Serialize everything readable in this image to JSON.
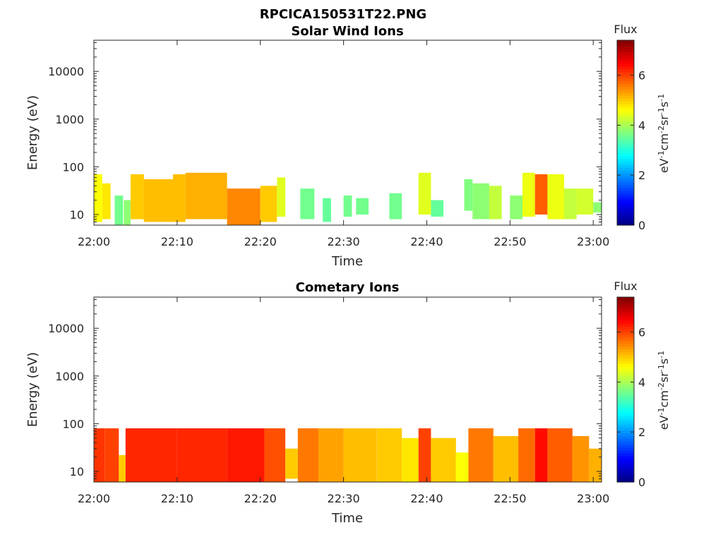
{
  "figure_title": "RPCICA150531T22.PNG",
  "chart_data": [
    {
      "type": "heatmap",
      "title": "Solar Wind Ions",
      "xlabel": "Time",
      "ylabel": "Energy (eV)",
      "yscale": "log",
      "xlim": [
        "22:00",
        "23:01"
      ],
      "ylim": [
        6,
        45000
      ],
      "x_ticks": [
        "22:00",
        "22:10",
        "22:20",
        "22:30",
        "22:40",
        "22:50",
        "23:00"
      ],
      "y_ticks": [
        "10",
        "100",
        "1000",
        "10000"
      ],
      "colorbar": {
        "title": "Flux",
        "label": "eV-1cm-2sr-1s-1",
        "range": [
          0,
          7.4
        ],
        "ticks": [
          "0",
          "2",
          "4",
          "6"
        ],
        "colormap": "jet"
      },
      "segments": [
        {
          "t": [
            0.0,
            1.0
          ],
          "e": [
            7,
            70
          ],
          "flux": 4.6
        },
        {
          "t": [
            1.0,
            2.0
          ],
          "e": [
            8,
            45
          ],
          "flux": 4.8
        },
        {
          "t": [
            2.5,
            3.5
          ],
          "e": [
            6,
            25
          ],
          "flux": 3.6
        },
        {
          "t": [
            3.6,
            4.4
          ],
          "e": [
            6,
            20
          ],
          "flux": 3.8
        },
        {
          "t": [
            4.4,
            6.0
          ],
          "e": [
            8,
            70
          ],
          "flux": 5.0
        },
        {
          "t": [
            6.0,
            9.5
          ],
          "e": [
            7,
            55
          ],
          "flux": 5.1
        },
        {
          "t": [
            9.5,
            11.0
          ],
          "e": [
            7,
            70
          ],
          "flux": 5.1
        },
        {
          "t": [
            11.0,
            16.0
          ],
          "e": [
            8,
            75
          ],
          "flux": 5.2
        },
        {
          "t": [
            16.0,
            20.0
          ],
          "e": [
            6,
            35
          ],
          "flux": 5.5
        },
        {
          "t": [
            20.0,
            22.0
          ],
          "e": [
            7,
            40
          ],
          "flux": 5.0
        },
        {
          "t": [
            22.0,
            23.0
          ],
          "e": [
            9,
            60
          ],
          "flux": 4.4
        },
        {
          "t": [
            24.8,
            26.5
          ],
          "e": [
            8,
            35
          ],
          "flux": 3.6
        },
        {
          "t": [
            27.5,
            28.5
          ],
          "e": [
            7,
            22
          ],
          "flux": 3.5
        },
        {
          "t": [
            30.0,
            31.0
          ],
          "e": [
            9,
            25
          ],
          "flux": 3.6
        },
        {
          "t": [
            31.5,
            33.0
          ],
          "e": [
            10,
            22
          ],
          "flux": 3.6
        },
        {
          "t": [
            35.5,
            37.0
          ],
          "e": [
            8,
            28
          ],
          "flux": 3.6
        },
        {
          "t": [
            39.0,
            40.5
          ],
          "e": [
            10,
            75
          ],
          "flux": 4.4
        },
        {
          "t": [
            40.5,
            42.0
          ],
          "e": [
            9,
            20
          ],
          "flux": 3.5
        },
        {
          "t": [
            44.5,
            45.5
          ],
          "e": [
            12,
            55
          ],
          "flux": 3.7
        },
        {
          "t": [
            45.5,
            47.5
          ],
          "e": [
            8,
            45
          ],
          "flux": 3.8
        },
        {
          "t": [
            47.5,
            49.0
          ],
          "e": [
            8,
            40
          ],
          "flux": 4.2
        },
        {
          "t": [
            50.0,
            51.5
          ],
          "e": [
            8,
            25
          ],
          "flux": 3.8
        },
        {
          "t": [
            51.5,
            53.0
          ],
          "e": [
            9,
            75
          ],
          "flux": 4.5
        },
        {
          "t": [
            53.0,
            54.5
          ],
          "e": [
            10,
            70
          ],
          "flux": 5.8
        },
        {
          "t": [
            54.5,
            56.5
          ],
          "e": [
            8,
            70
          ],
          "flux": 4.5
        },
        {
          "t": [
            56.5,
            58.0
          ],
          "e": [
            8,
            35
          ],
          "flux": 4.2
        },
        {
          "t": [
            58.0,
            60.0
          ],
          "e": [
            10,
            35
          ],
          "flux": 4.3
        },
        {
          "t": [
            60.0,
            61.0
          ],
          "e": [
            11,
            18
          ],
          "flux": 3.8
        }
      ]
    },
    {
      "type": "heatmap",
      "title": "Cometary Ions",
      "xlabel": "Time",
      "ylabel": "Energy (eV)",
      "yscale": "log",
      "xlim": [
        "22:00",
        "23:01"
      ],
      "ylim": [
        6,
        45000
      ],
      "x_ticks": [
        "22:00",
        "22:10",
        "22:20",
        "22:30",
        "22:40",
        "22:50",
        "23:00"
      ],
      "y_ticks": [
        "10",
        "100",
        "1000",
        "10000"
      ],
      "colorbar": {
        "title": "Flux",
        "label": "eV-1cm-2sr-1s-1",
        "range": [
          0,
          7.4
        ],
        "ticks": [
          "0",
          "2",
          "4",
          "6"
        ],
        "colormap": "jet"
      },
      "segments": [
        {
          "t": [
            0.0,
            1.3
          ],
          "e": [
            6,
            80
          ],
          "flux": 6.1
        },
        {
          "t": [
            1.3,
            3.0
          ],
          "e": [
            6,
            80
          ],
          "flux": 6.0
        },
        {
          "t": [
            3.0,
            3.8
          ],
          "e": [
            6,
            22
          ],
          "flux": 5.0
        },
        {
          "t": [
            3.8,
            10.0
          ],
          "e": [
            6,
            80
          ],
          "flux": 6.2
        },
        {
          "t": [
            10.0,
            16.0
          ],
          "e": [
            6,
            80
          ],
          "flux": 6.2
        },
        {
          "t": [
            16.0,
            20.5
          ],
          "e": [
            6,
            80
          ],
          "flux": 6.3
        },
        {
          "t": [
            20.5,
            23.0
          ],
          "e": [
            6,
            80
          ],
          "flux": 5.9
        },
        {
          "t": [
            23.0,
            24.5
          ],
          "e": [
            7,
            30
          ],
          "flux": 5.0
        },
        {
          "t": [
            24.5,
            27.0
          ],
          "e": [
            6,
            80
          ],
          "flux": 5.6
        },
        {
          "t": [
            27.0,
            30.0
          ],
          "e": [
            6,
            80
          ],
          "flux": 5.3
        },
        {
          "t": [
            30.0,
            34.0
          ],
          "e": [
            6,
            80
          ],
          "flux": 5.1
        },
        {
          "t": [
            34.0,
            37.0
          ],
          "e": [
            6,
            80
          ],
          "flux": 5.0
        },
        {
          "t": [
            37.0,
            39.0
          ],
          "e": [
            6,
            50
          ],
          "flux": 4.8
        },
        {
          "t": [
            39.0,
            40.5
          ],
          "e": [
            6,
            80
          ],
          "flux": 6.0
        },
        {
          "t": [
            40.5,
            43.5
          ],
          "e": [
            6,
            50
          ],
          "flux": 5.0
        },
        {
          "t": [
            43.5,
            45.0
          ],
          "e": [
            6,
            25
          ],
          "flux": 4.6
        },
        {
          "t": [
            45.0,
            48.0
          ],
          "e": [
            6,
            80
          ],
          "flux": 5.6
        },
        {
          "t": [
            48.0,
            51.0
          ],
          "e": [
            6,
            55
          ],
          "flux": 5.1
        },
        {
          "t": [
            51.0,
            53.0
          ],
          "e": [
            6,
            80
          ],
          "flux": 5.7
        },
        {
          "t": [
            53.0,
            54.5
          ],
          "e": [
            6,
            80
          ],
          "flux": 6.4
        },
        {
          "t": [
            54.5,
            57.5
          ],
          "e": [
            6,
            80
          ],
          "flux": 5.8
        },
        {
          "t": [
            57.5,
            59.5
          ],
          "e": [
            6,
            55
          ],
          "flux": 5.4
        },
        {
          "t": [
            59.5,
            61.0
          ],
          "e": [
            6,
            30
          ],
          "flux": 5.2
        }
      ]
    }
  ]
}
